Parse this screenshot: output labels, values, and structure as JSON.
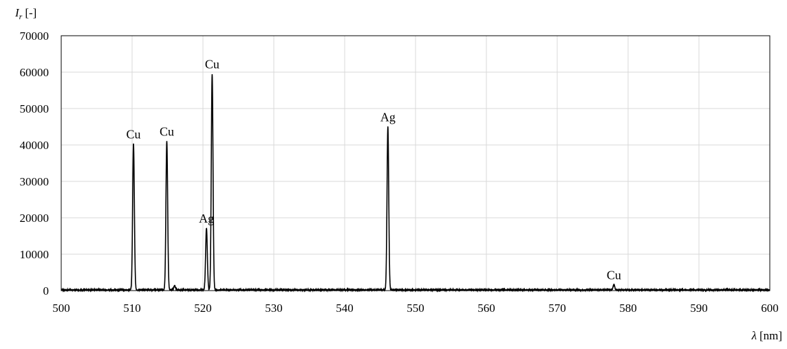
{
  "chart_data": {
    "type": "line",
    "title": "",
    "xlabel": {
      "symbol": "λ",
      "unit": "[nm]"
    },
    "ylabel": {
      "symbol": "I",
      "subscript": "r",
      "unit": "[-]"
    },
    "xlim": [
      500,
      600
    ],
    "ylim": [
      0,
      70000
    ],
    "xticks": [
      500,
      510,
      520,
      530,
      540,
      550,
      560,
      570,
      580,
      590,
      600
    ],
    "yticks": [
      0,
      10000,
      20000,
      30000,
      40000,
      50000,
      60000,
      70000
    ],
    "grid": true,
    "legend": "none",
    "series": [
      {
        "color": "#000000",
        "baseline": 200,
        "peaks": [
          {
            "x": 510.2,
            "y": 40300
          },
          {
            "x": 514.9,
            "y": 41000
          },
          {
            "x": 516.0,
            "y": 1300
          },
          {
            "x": 520.5,
            "y": 17200
          },
          {
            "x": 521.3,
            "y": 59500
          },
          {
            "x": 546.1,
            "y": 45000
          },
          {
            "x": 578.0,
            "y": 1600
          }
        ]
      }
    ],
    "annotations": [
      {
        "text": "Cu",
        "x": 510.2,
        "y": 40300
      },
      {
        "text": "Cu",
        "x": 514.9,
        "y": 41000
      },
      {
        "text": "Ag",
        "x": 520.5,
        "y": 17200
      },
      {
        "text": "Cu",
        "x": 521.3,
        "y": 59500
      },
      {
        "text": "Ag",
        "x": 546.1,
        "y": 45000
      },
      {
        "text": "Cu",
        "x": 578.0,
        "y": 1600
      }
    ],
    "colors": {
      "grid": "#d9d9d9",
      "axis": "#000000",
      "line": "#000000"
    }
  }
}
